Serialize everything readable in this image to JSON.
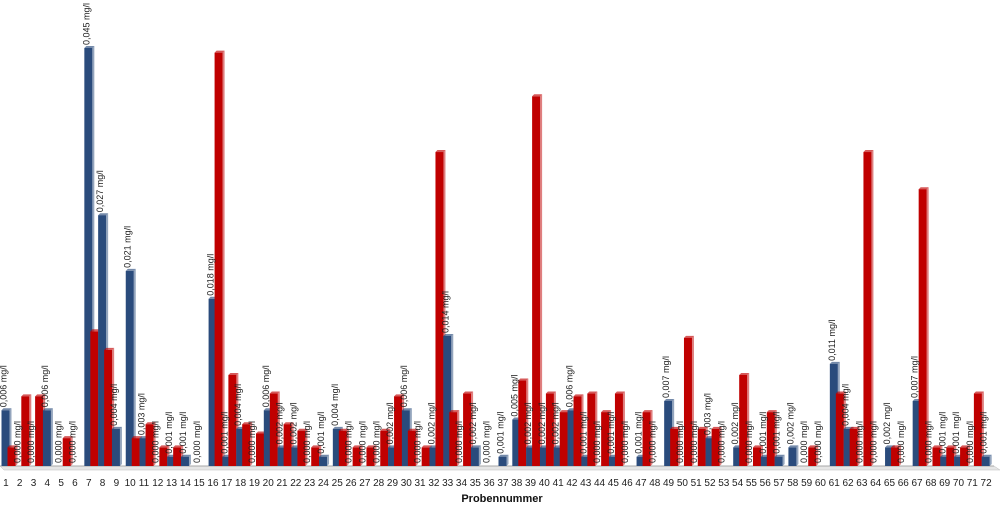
{
  "chart_data": {
    "type": "bar",
    "xlabel": "Probennummer",
    "ylabel": "",
    "title": "",
    "ylim": [
      0,
      0.045
    ],
    "grid": false,
    "legend": "none",
    "colors": {
      "series_blue": "#2a4b7c",
      "series_red": "#c00000"
    },
    "categories": [
      "1",
      "2",
      "3",
      "4",
      "5",
      "6",
      "7",
      "8",
      "9",
      "10",
      "11",
      "12",
      "13",
      "14",
      "15",
      "16",
      "17",
      "18",
      "19",
      "20",
      "21",
      "22",
      "23",
      "24",
      "25",
      "26",
      "27",
      "28",
      "29",
      "30",
      "31",
      "32",
      "33",
      "34",
      "35",
      "36",
      "37",
      "38",
      "39",
      "40",
      "41",
      "42",
      "43",
      "44",
      "45",
      "46",
      "47",
      "48",
      "49",
      "50",
      "51",
      "52",
      "53",
      "54",
      "55",
      "56",
      "57",
      "58",
      "59",
      "60",
      "61",
      "62",
      "63",
      "64",
      "65",
      "66",
      "67",
      "68",
      "69",
      "70",
      "71",
      "72"
    ],
    "series": [
      {
        "values": [
          0.006,
          0.0,
          0.0,
          0.006,
          0.0,
          0.0,
          0.045,
          0.027,
          0.004,
          0.021,
          0.003,
          0.0,
          0.001,
          0.001,
          0.0,
          0.018,
          0.001,
          0.004,
          0.0,
          0.006,
          0.002,
          0.002,
          0.0,
          0.001,
          0.004,
          0.0,
          0.0,
          0.0,
          0.002,
          0.006,
          0.0,
          0.002,
          0.014,
          0.0,
          0.002,
          0.0,
          0.001,
          0.005,
          0.002,
          0.002,
          0.002,
          0.006,
          0.001,
          0.0,
          0.001,
          0.0,
          0.001,
          0.0,
          0.007,
          0.0,
          0.0,
          0.003,
          0.0,
          0.002,
          0.0,
          0.001,
          0.001,
          0.002,
          0.0,
          0.0,
          0.011,
          0.004,
          0.0,
          0.0,
          0.002,
          0.0,
          0.007,
          0.0,
          0.001,
          0.001,
          0.0,
          0.001
        ]
      },
      {
        "values": [
          0.002,
          0.0075,
          0.0075,
          0.0,
          0.003,
          0.0,
          0.0145,
          0.0125,
          0.0,
          0.003,
          0.0045,
          0.002,
          0.002,
          0.0,
          0.0,
          0.0445,
          0.0098,
          0.0045,
          0.0035,
          0.0078,
          0.0045,
          0.0038,
          0.002,
          0.0,
          0.0038,
          0.002,
          0.002,
          0.0038,
          0.0075,
          0.0038,
          0.002,
          0.0338,
          0.0058,
          0.0078,
          0.0,
          0.0,
          0.0,
          0.0092,
          0.0398,
          0.0078,
          0.0058,
          0.0075,
          0.0078,
          0.0058,
          0.0078,
          0.0,
          0.0058,
          0.0,
          0.004,
          0.0138,
          0.004,
          0.004,
          0.0,
          0.0098,
          0.002,
          0.0058,
          0.0,
          0.0,
          0.002,
          0.0,
          0.0078,
          0.004,
          0.0338,
          0.0,
          0.002,
          0.0,
          0.0298,
          0.002,
          0.002,
          0.002,
          0.0078,
          0.0
        ]
      }
    ],
    "data_labels": [
      "0,006 mg/l",
      "0,000 mg/l",
      "0,000 mg/l",
      "0,006 mg/l",
      "0,000 mg/l",
      "0,000 mg/l",
      "0,045 mg/l",
      "0,027 mg/l",
      "0,004 mg/l",
      "0,021 mg/l",
      "0,003 mg/l",
      "0,000 mg/l",
      "0,001 mg/l",
      "0,001 mg/l",
      "0,000 mg/l",
      "0,018 mg/l",
      "0,001 mg/l",
      "0,004 mg/l",
      "0,000 mg/l",
      "0,006 mg/l",
      "0,002 mg/l",
      "0,002 mg/l",
      "0,000 mg/l",
      "0,001 mg/l",
      "0,004 mg/l",
      "0,000 mg/l",
      "0,000 mg/l",
      "0,000 mg/l",
      "0,002 mg/l",
      "0,006 mg/l",
      "0,000 mg/l",
      "0,002 mg/l",
      "0,014 mg/l",
      "0,000 mg/l",
      "0,002 mg/l",
      "0,000 mg/l",
      "0,001 mg/l",
      "0,005 mg/l",
      "0,002 mg/l",
      "0,002 mg/l",
      "0,002 mg/l",
      "0,006 mg/l",
      "0,001 mg/l",
      "0,000 mg/l",
      "0,001 mg/l",
      "0,000 mg/l",
      "0,001 mg/l",
      "0,000 mg/l",
      "0,007 mg/l",
      "0,000 mg/l",
      "0,000 mg/l",
      "0,003 mg/l",
      "0,000 mg/l",
      "0,002 mg/l",
      "0,000 mg/l",
      "0,001 mg/l",
      "0,001 mg/l",
      "0,002 mg/l",
      "0,000 mg/l",
      "0,000 mg/l",
      "0,011 mg/l",
      "0,004 mg/l",
      "0,000 mg/l",
      "0,000 mg/l",
      "0,002 mg/l",
      "0,000 mg/l",
      "0,007 mg/l",
      "0,000 mg/l",
      "0,001 mg/l",
      "0,001 mg/l",
      "0,000 mg/l",
      "0,001 mg/l"
    ]
  }
}
